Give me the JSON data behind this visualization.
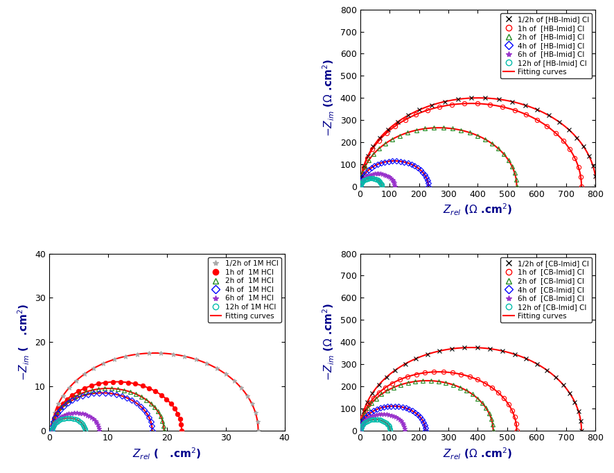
{
  "hcl": {
    "xlabel": "$Z_{rel}$ (   .cm$^2$)",
    "ylabel": "$-Z_{im}$ (   .cm$^2$)",
    "xlim": [
      0,
      40
    ],
    "ylim": [
      0,
      40
    ],
    "xticks": [
      0,
      10,
      20,
      30,
      40
    ],
    "yticks": [
      0,
      10,
      20,
      30,
      40
    ],
    "series": [
      {
        "label": "1/2h of 1M HCl",
        "color": "#aaaaaa",
        "marker": "*",
        "R": 17.5,
        "Rs": 0.5,
        "filled": false
      },
      {
        "label": "1h of  1M HCl",
        "color": "#ff0000",
        "marker": "o",
        "R": 11.0,
        "Rs": 0.5,
        "filled": true
      },
      {
        "label": "2h of  1M HCl",
        "color": "#228B22",
        "marker": "^",
        "R": 9.5,
        "Rs": 0.5,
        "filled": false
      },
      {
        "label": "4h of  1M HCl",
        "color": "#0000ff",
        "marker": "D",
        "R": 8.5,
        "Rs": 0.5,
        "filled": false
      },
      {
        "label": "6h of  1M HCl",
        "color": "#9933cc",
        "marker": "*",
        "R": 4.0,
        "Rs": 0.5,
        "filled": false
      },
      {
        "label": "12h of 1M HCl",
        "color": "#00bbaa",
        "marker": "o",
        "R": 2.8,
        "Rs": 0.5,
        "filled": false
      }
    ],
    "fitting_color": "#ff0000"
  },
  "hb": {
    "xlabel": "$Z_{rel}$ ($\\Omega$ .cm$^2$)",
    "ylabel": "$-Z_{im}$ ($\\Omega$ .cm$^2$)",
    "xlim": [
      0,
      800
    ],
    "ylim": [
      0,
      800
    ],
    "xticks": [
      0,
      100,
      200,
      300,
      400,
      500,
      600,
      700,
      800
    ],
    "yticks": [
      0,
      100,
      200,
      300,
      400,
      500,
      600,
      700,
      800
    ],
    "series": [
      {
        "label": "1/2h of [HB-Imid] Cl",
        "color": "#000000",
        "marker": "x",
        "R": 400,
        "Rs": 2,
        "filled": false
      },
      {
        "label": "1h of  [HB-Imid] Cl",
        "color": "#ff0000",
        "marker": "o",
        "R": 375,
        "Rs": 2,
        "filled": false
      },
      {
        "label": "2h of  [HB-Imid] Cl",
        "color": "#228B22",
        "marker": "^",
        "R": 265,
        "Rs": 2,
        "filled": false
      },
      {
        "label": "4h of  [HB-Imid] Cl",
        "color": "#0000ff",
        "marker": "D",
        "R": 115,
        "Rs": 2,
        "filled": false
      },
      {
        "label": "6h of  [HB-Imid] Cl",
        "color": "#9933cc",
        "marker": "*",
        "R": 58,
        "Rs": 2,
        "filled": false
      },
      {
        "label": "12h of [HB-Imid] Cl",
        "color": "#00bbaa",
        "marker": "o",
        "R": 36,
        "Rs": 2,
        "filled": false
      }
    ],
    "fitting_color": "#ff0000"
  },
  "cb": {
    "xlabel": "$Z_{rel}$ ($\\Omega$ .cm$^2$)",
    "ylabel": "$-Z_{im}$ ($\\Omega$ .cm$^2$)",
    "xlim": [
      0,
      800
    ],
    "ylim": [
      0,
      800
    ],
    "xticks": [
      0,
      100,
      200,
      300,
      400,
      500,
      600,
      700,
      800
    ],
    "yticks": [
      0,
      100,
      200,
      300,
      400,
      500,
      600,
      700,
      800
    ],
    "series": [
      {
        "label": "1/2h of [CB-Imid] Cl",
        "color": "#000000",
        "marker": "x",
        "R": 375,
        "Rs": 2,
        "filled": false
      },
      {
        "label": "1h of  [CB-Imid] Cl",
        "color": "#ff0000",
        "marker": "o",
        "R": 265,
        "Rs": 2,
        "filled": false
      },
      {
        "label": "2h of  [CB-Imid] Cl",
        "color": "#228B22",
        "marker": "^",
        "R": 225,
        "Rs": 2,
        "filled": false
      },
      {
        "label": "4h of  [CB-Imid] Cl",
        "color": "#0000ff",
        "marker": "D",
        "R": 110,
        "Rs": 2,
        "filled": false
      },
      {
        "label": "6h of  [CB-Imid] Cl",
        "color": "#9933cc",
        "marker": "*",
        "R": 75,
        "Rs": 2,
        "filled": false
      },
      {
        "label": "12h of [CB-Imid] Cl",
        "color": "#00bbaa",
        "marker": "o",
        "R": 50,
        "Rs": 2,
        "filled": false
      }
    ],
    "fitting_color": "#ff0000"
  },
  "label_color": "#00008B",
  "tick_fontsize": 9,
  "label_fontsize": 11
}
